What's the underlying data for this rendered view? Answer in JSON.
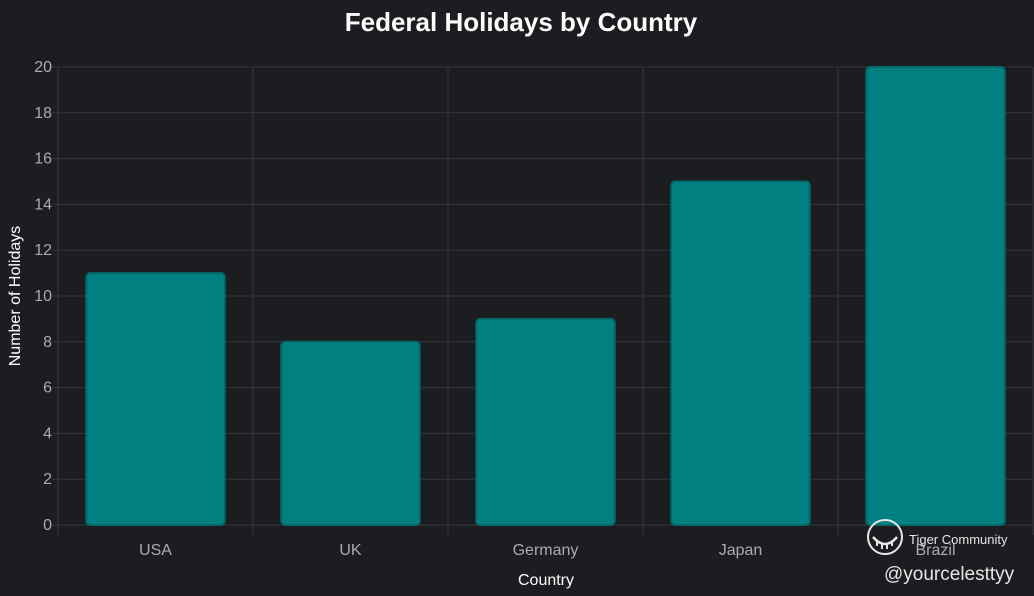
{
  "chart_data": {
    "type": "bar",
    "title": "Federal Holidays by Country",
    "xlabel": "Country",
    "ylabel": "Number of Holidays",
    "categories": [
      "USA",
      "UK",
      "Germany",
      "Japan",
      "Brazil"
    ],
    "values": [
      11,
      8,
      9,
      15,
      20
    ],
    "ylim": [
      0,
      20
    ],
    "yticks": [
      "0",
      "2",
      "4",
      "6",
      "8",
      "10",
      "12",
      "14",
      "16",
      "18",
      "20"
    ],
    "grid": true,
    "bar_color": "#008080",
    "bar_border_color": "#006b6b"
  },
  "watermark": {
    "brand": "Tiger Community",
    "handle": "@yourcelesttyy",
    "icon": "tiger-logo-icon"
  }
}
